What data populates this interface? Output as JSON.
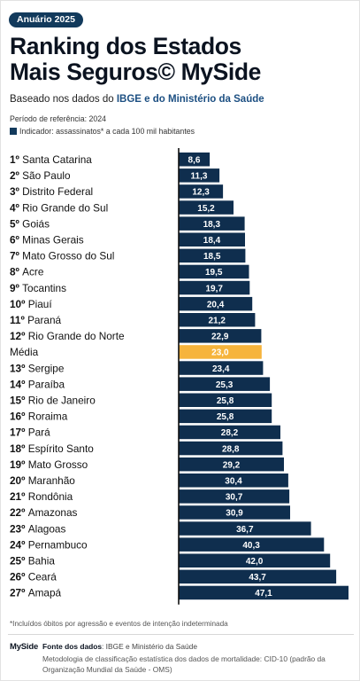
{
  "badge": "Anuário 2025",
  "title": {
    "line1": "Ranking dos Estados",
    "line2": "Mais Seguros",
    "brand": "© MySide"
  },
  "subtitle": {
    "prefix": "Baseado nos dados do ",
    "highlight": "IBGE e do Ministério da Saúde"
  },
  "reference_period": "Período de referência: 2024",
  "indicator": "Indicador: assassinatos* a cada 100 mil habitantes",
  "colors": {
    "bar": "#0f2e4e",
    "highlight_bar": "#f6b43c",
    "axis": "#111111",
    "accent": "#1c4f82"
  },
  "chart_data": {
    "type": "bar",
    "orientation": "horizontal",
    "categories": [
      "1º Santa Catarina",
      "2º São Paulo",
      "3º Distrito Federal",
      "4º Rio Grande do Sul",
      "5º Goiás",
      "6º Minas Gerais",
      "7º Mato Grosso do Sul",
      "8º Acre",
      "9º Tocantins",
      "10º Piauí",
      "11º Paraná",
      "12º Rio Grande do Norte",
      "Média",
      "13º Sergipe",
      "14º Paraíba",
      "15º Rio de Janeiro",
      "16º Roraima",
      "17º Pará",
      "18º Espírito Santo",
      "19º Mato Grosso",
      "20º Maranhão",
      "21º Rondônia",
      "22º Amazonas",
      "23º Alagoas",
      "24º Pernambuco",
      "25º Bahia",
      "26º Ceará",
      "27º Amapá"
    ],
    "values": [
      8.6,
      11.3,
      12.3,
      15.2,
      18.3,
      18.4,
      18.5,
      19.5,
      19.7,
      20.4,
      21.2,
      22.9,
      23.0,
      23.4,
      25.3,
      25.8,
      25.8,
      28.2,
      28.8,
      29.2,
      30.4,
      30.7,
      30.9,
      36.7,
      40.3,
      42.0,
      43.7,
      47.1
    ],
    "value_labels": [
      "8,6",
      "11,3",
      "12,3",
      "15,2",
      "18,3",
      "18,4",
      "18,5",
      "19,5",
      "19,7",
      "20,4",
      "21,2",
      "22,9",
      "23,0",
      "23,4",
      "25,3",
      "25,8",
      "25,8",
      "28,2",
      "28,8",
      "29,2",
      "30,4",
      "30,7",
      "30,9",
      "36,7",
      "40,3",
      "42,0",
      "43,7",
      "47,1"
    ],
    "highlight_index": 12,
    "xlim": [
      0,
      47.1
    ],
    "grid": false,
    "legend": "none"
  },
  "footnote": "*Incluídos óbitos por agressão e eventos de intenção indeterminada",
  "footer": {
    "logo": "MySide",
    "source_label": "Fonte dos dados",
    "source_text": ": IBGE e Ministério da Saúde",
    "methodology": "Metodologia de classificação estatística dos dados de mortalidade: CID-10 (padrão da Organização Mundial da Saúde - OMS)"
  }
}
